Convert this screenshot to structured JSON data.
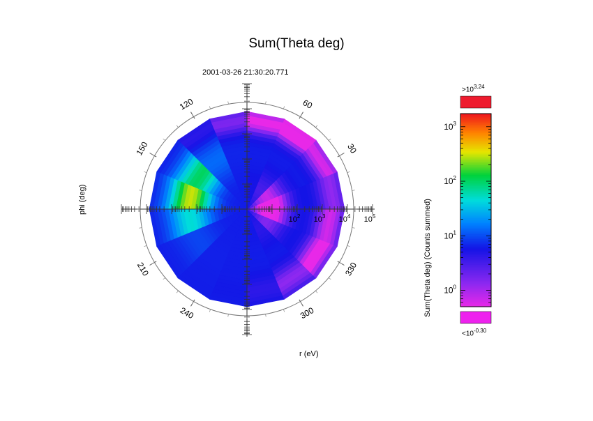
{
  "chart_data": {
    "type": "heatmap",
    "projection": "polar",
    "title": "Sum(Theta deg)",
    "timestamp": "2001-03-26 21:30:20.771",
    "xlabel": "r (eV)",
    "ylabel": "phi (deg)",
    "radial_axis": {
      "scale": "log",
      "range_exp": [
        0,
        5
      ],
      "tick_base": "10",
      "tick_exponents": [
        "2",
        "3",
        "4",
        "5"
      ]
    },
    "angular_axis": {
      "tick_labels_deg": [
        "30",
        "60",
        "120",
        "150",
        "210",
        "240",
        "300",
        "330"
      ],
      "tick_angles_deg": [
        30,
        60,
        120,
        150,
        210,
        240,
        300,
        330
      ]
    },
    "colorbar": {
      "label": "Sum(Theta deg) (Counts summed)",
      "scale": "log",
      "range_exp": [
        -0.3,
        3.24
      ],
      "tick_base": "10",
      "tick_exponents": [
        "0",
        "1",
        "2",
        "3"
      ],
      "over_prefix": ">10",
      "over_exp": "3.24",
      "under_prefix": "<10",
      "under_exp": "-0.30",
      "over_color": "#ee1b2e",
      "under_color": "#ee22ee"
    },
    "field": {
      "baseline_log": 0.8,
      "blobs": [
        {
          "r_log": 3.0,
          "phi_deg": 165,
          "peak_log": 2.5,
          "width_r": 1.1,
          "width_phi_deg": 32
        },
        {
          "r_log": 1.2,
          "phi_deg": 5,
          "peak_log": -0.8,
          "width_r": 0.9,
          "width_phi_deg": 40
        },
        {
          "r_log": 4.6,
          "phi_deg": 60,
          "peak_log": -0.6,
          "width_r": 0.6,
          "width_phi_deg": 45
        },
        {
          "r_log": 4.3,
          "phi_deg": 330,
          "peak_log": -0.4,
          "width_r": 0.7,
          "width_phi_deg": 35
        }
      ]
    }
  }
}
